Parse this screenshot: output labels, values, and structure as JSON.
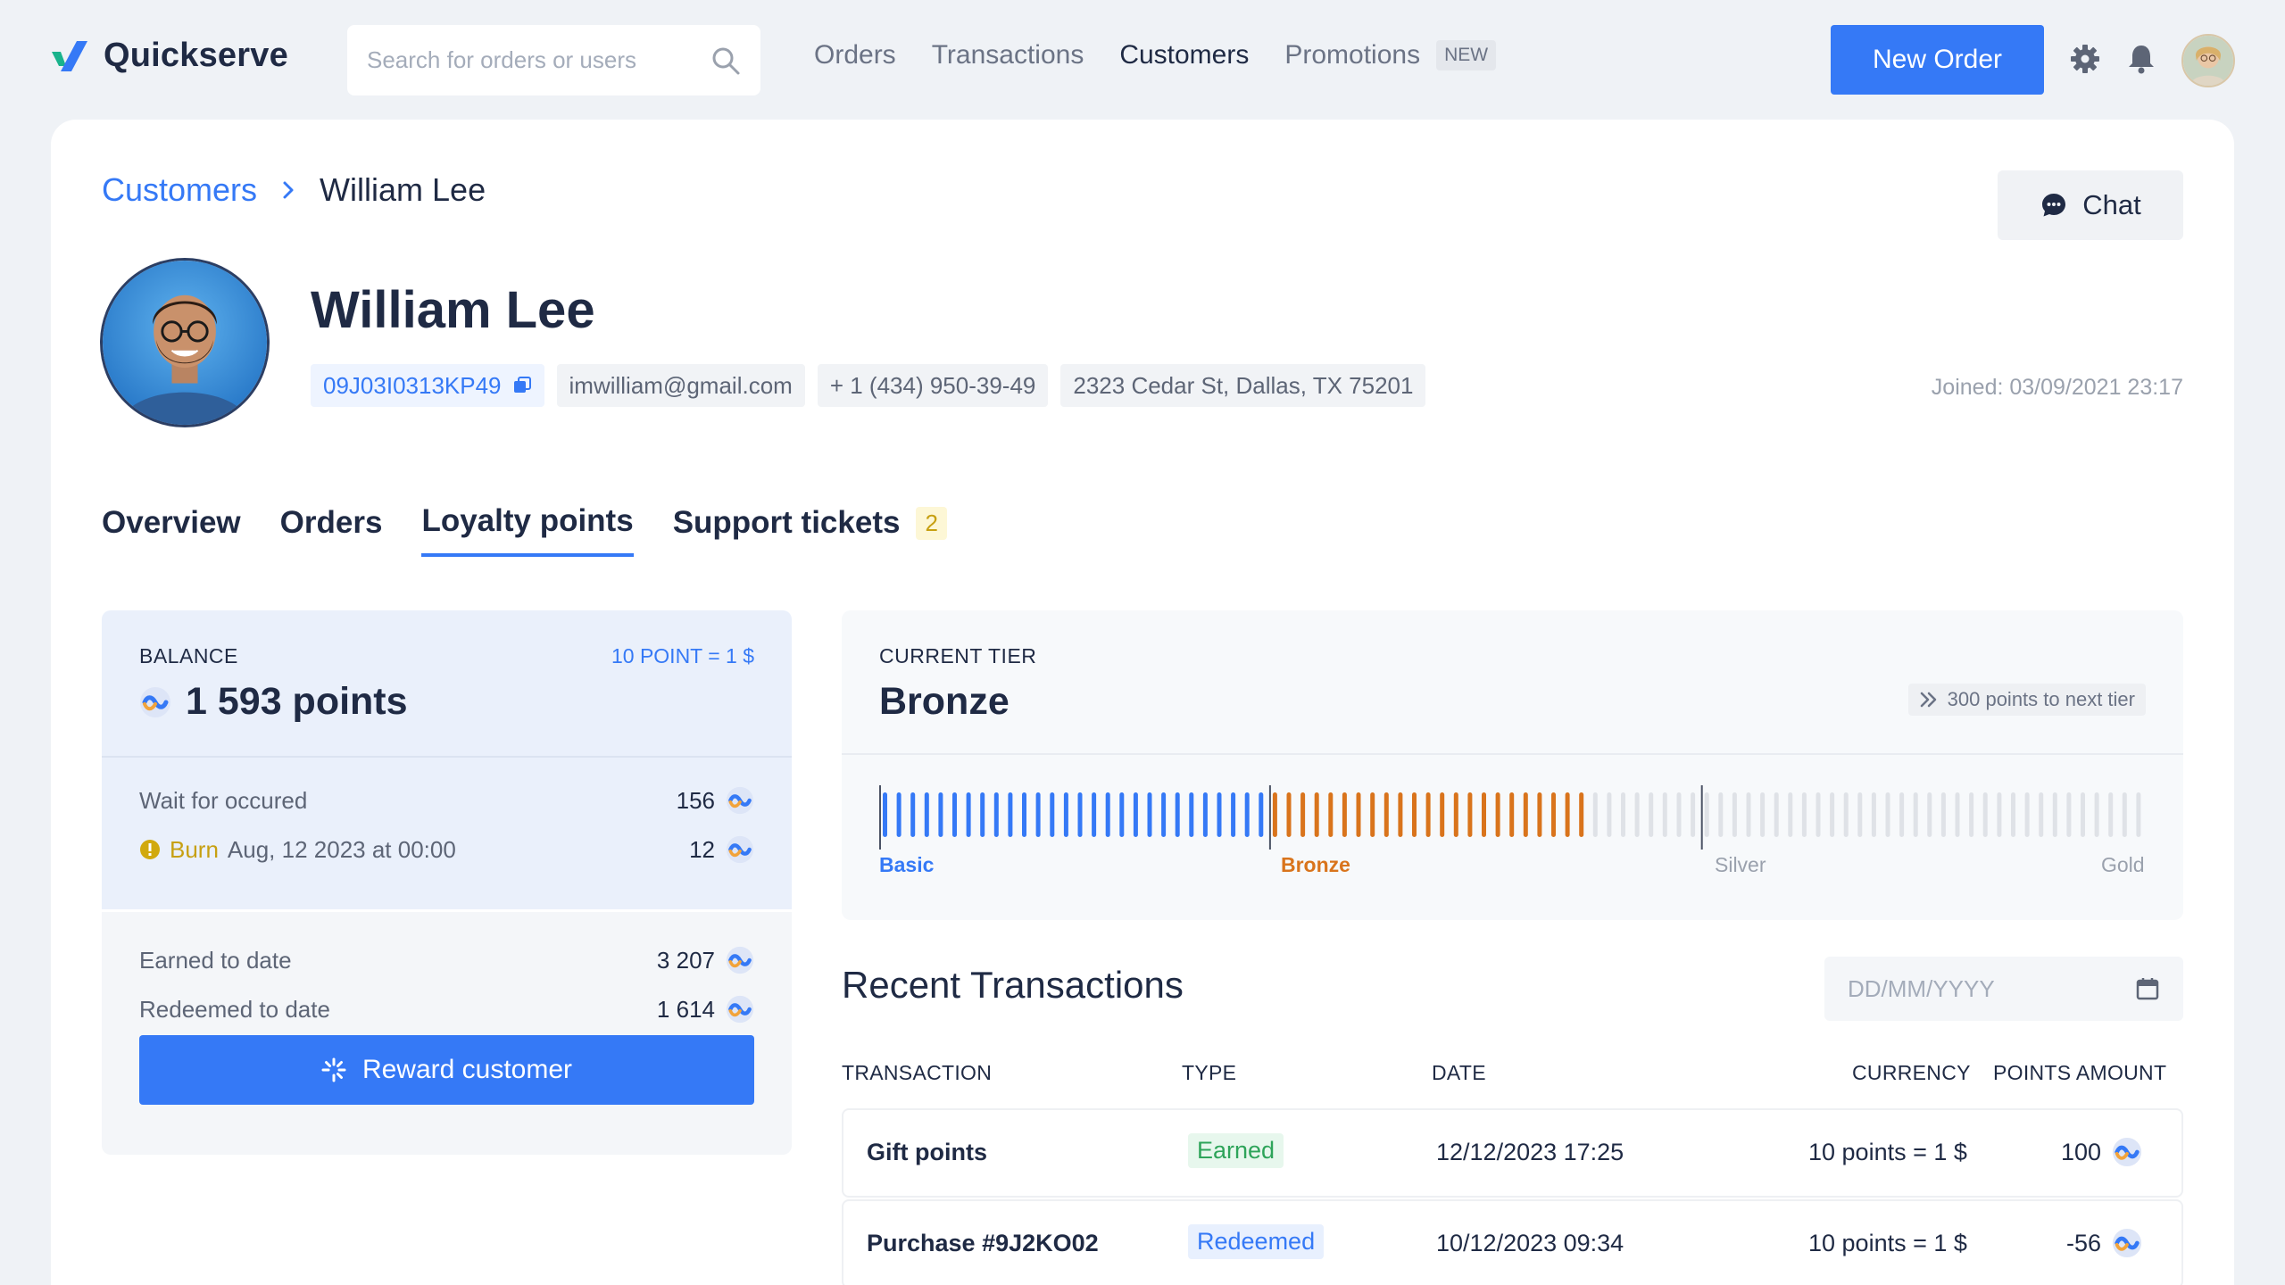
{
  "app": {
    "name": "Quickserve"
  },
  "search": {
    "placeholder": "Search for orders or users"
  },
  "nav": {
    "items": [
      {
        "label": "Orders"
      },
      {
        "label": "Transactions"
      },
      {
        "label": "Customers"
      },
      {
        "label": "Promotions"
      }
    ],
    "promo_badge": "NEW"
  },
  "header": {
    "new_order_label": "New Order"
  },
  "breadcrumb": {
    "parent": "Customers",
    "current": "William Lee"
  },
  "chat_label": "Chat",
  "customer": {
    "name": "William Lee",
    "id": "09J03I0313KP49",
    "email": "imwilliam@gmail.com",
    "phone": "+ 1 (434) 950-39-49",
    "address": "2323 Cedar St, Dallas, TX 75201",
    "joined": "Joined: 03/09/2021 23:17"
  },
  "tabs": {
    "overview": "Overview",
    "orders": "Orders",
    "loyalty": "Loyalty points",
    "support": "Support tickets",
    "support_count": "2"
  },
  "balance": {
    "label": "BALANCE",
    "rate": "10 POINT = 1 $",
    "value": "1 593 points",
    "wait_label": "Wait for occured",
    "wait_value": "156",
    "burn_label": "Burn",
    "burn_date": "Aug, 12 2023 at 00:00",
    "burn_value": "12",
    "earned_label": "Earned to date",
    "earned_value": "3 207",
    "redeemed_label": "Redeemed to date",
    "redeemed_value": "1 614",
    "reward_button": "Reward customer"
  },
  "tier": {
    "label": "CURRENT TIER",
    "name": "Bronze",
    "next": "300 points to next tier",
    "levels": [
      "Basic",
      "Bronze",
      "Silver",
      "Gold"
    ],
    "progress": {
      "basic_ticks": 28,
      "bronze_ticks": 23,
      "remaining_ticks": 40
    },
    "colors": {
      "basic": "#3579f6",
      "bronze": "#d9741c",
      "remaining": "#dfe2e7"
    }
  },
  "transactions": {
    "title": "Recent Transactions",
    "date_placeholder": "DD/MM/YYYY",
    "columns": [
      "TRANSACTION",
      "TYPE",
      "DATE",
      "CURRENCY",
      "POINTS AMOUNT"
    ],
    "rows": [
      {
        "name": "Gift points",
        "type": "Earned",
        "date": "12/12/2023 17:25",
        "currency": "10 points = 1 $",
        "amount": "100"
      },
      {
        "name": "Purchase #9J2KO02",
        "type": "Redeemed",
        "date": "10/12/2023 09:34",
        "currency": "10 points = 1 $",
        "amount": "-56"
      }
    ]
  },
  "colors": {
    "accent": "#3579f6",
    "text": "#1f2a44",
    "earned": "#2ea45a",
    "burn": "#c7a012"
  }
}
